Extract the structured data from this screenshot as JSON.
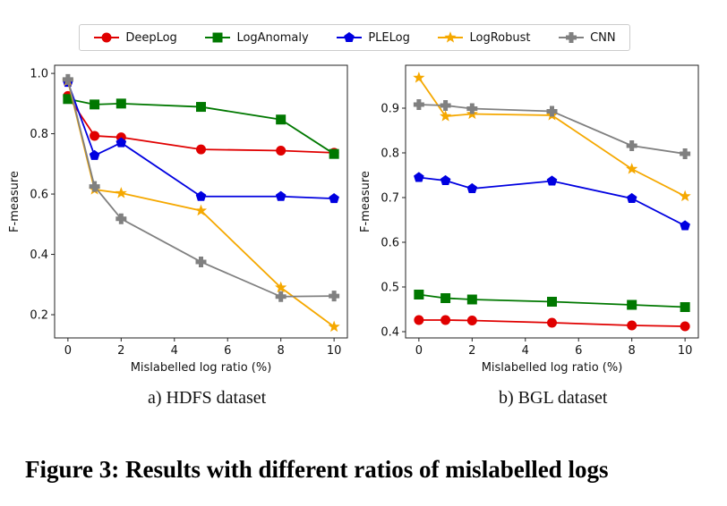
{
  "legend": [
    "DeepLog",
    "LogAnomaly",
    "PLELog",
    "LogRobust",
    "CNN"
  ],
  "colors": {
    "DeepLog": "#e00000",
    "LogAnomaly": "#007800",
    "PLELog": "#0000e0",
    "LogRobust": "#f5a800",
    "CNN": "#808080"
  },
  "markers": {
    "DeepLog": "circle",
    "LogAnomaly": "square",
    "PLELog": "pentagon",
    "LogRobust": "star",
    "CNN": "plus"
  },
  "caption": "Figure 3: Results with different ratios of mislabelled logs",
  "chart_data": [
    {
      "type": "line",
      "subtitle": "a) HDFS dataset",
      "xlabel": "Mislabelled log ratio (%)",
      "ylabel": "F-measure",
      "x": [
        0,
        1,
        2,
        5,
        8,
        10
      ],
      "xticks": [
        "0",
        "2",
        "4",
        "6",
        "8",
        "10"
      ],
      "yticks": [
        "0.2",
        "0.4",
        "0.6",
        "0.8",
        "1.0"
      ],
      "xlim": [
        -0.5,
        10.5
      ],
      "ylim": [
        0.123,
        1.027
      ],
      "grid": false,
      "series": [
        {
          "name": "DeepLog",
          "values": [
            0.925,
            0.793,
            0.788,
            0.748,
            0.744,
            0.737
          ]
        },
        {
          "name": "LogAnomaly",
          "values": [
            0.915,
            0.897,
            0.9,
            0.889,
            0.847,
            0.733
          ]
        },
        {
          "name": "PLELog",
          "values": [
            0.97,
            0.728,
            0.77,
            0.592,
            0.592,
            0.585
          ]
        },
        {
          "name": "LogRobust",
          "values": [
            0.975,
            0.615,
            0.603,
            0.545,
            0.29,
            0.16
          ]
        },
        {
          "name": "CNN",
          "values": [
            0.98,
            0.625,
            0.518,
            0.375,
            0.26,
            0.262
          ]
        }
      ]
    },
    {
      "type": "line",
      "subtitle": "b) BGL dataset",
      "xlabel": "Mislabelled log ratio (%)",
      "ylabel": "F-measure",
      "x": [
        0,
        1,
        2,
        5,
        8,
        10
      ],
      "xticks": [
        "0",
        "2",
        "4",
        "6",
        "8",
        "10"
      ],
      "yticks": [
        "0.4",
        "0.5",
        "0.6",
        "0.7",
        "0.8",
        "0.9"
      ],
      "xlim": [
        -0.5,
        10.5
      ],
      "ylim": [
        0.386,
        0.996
      ],
      "grid": false,
      "series": [
        {
          "name": "DeepLog",
          "values": [
            0.426,
            0.426,
            0.425,
            0.42,
            0.414,
            0.412
          ]
        },
        {
          "name": "LogAnomaly",
          "values": [
            0.483,
            0.475,
            0.472,
            0.467,
            0.46,
            0.455
          ]
        },
        {
          "name": "PLELog",
          "values": [
            0.745,
            0.738,
            0.72,
            0.737,
            0.698,
            0.637
          ]
        },
        {
          "name": "LogRobust",
          "values": [
            0.968,
            0.882,
            0.887,
            0.884,
            0.764,
            0.703
          ]
        },
        {
          "name": "CNN",
          "values": [
            0.908,
            0.906,
            0.899,
            0.893,
            0.816,
            0.798
          ]
        }
      ]
    }
  ]
}
